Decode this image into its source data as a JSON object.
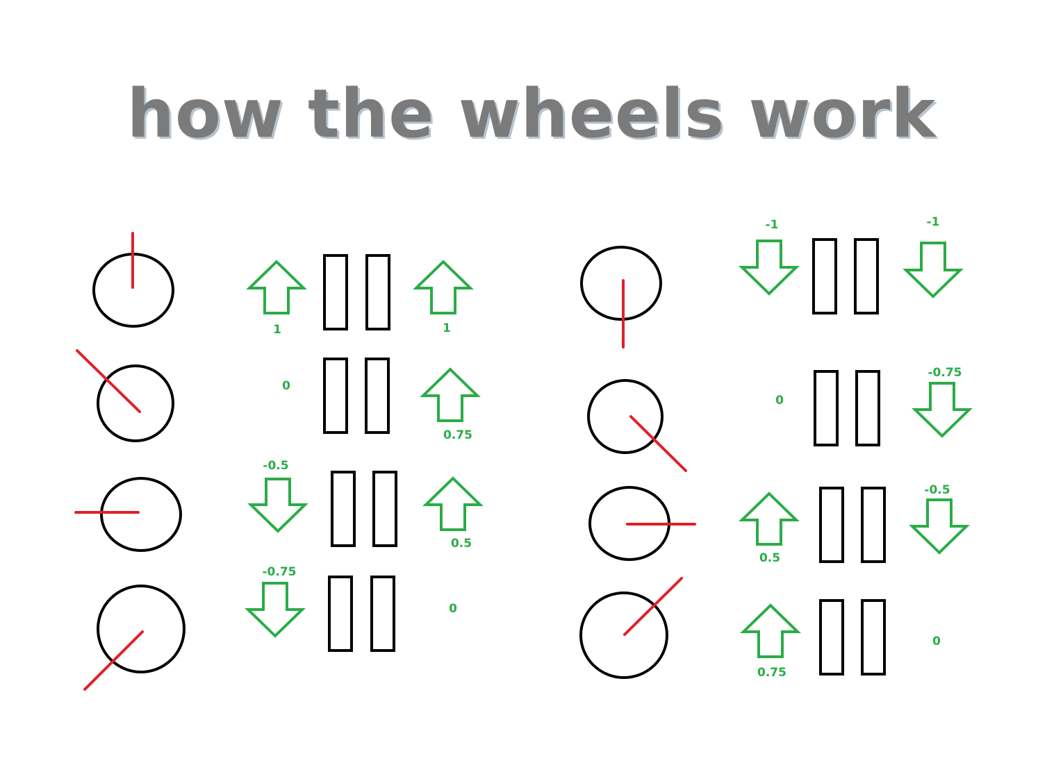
{
  "title": "how the wheels work",
  "colors": {
    "arrow": "#2bac48",
    "pointer": "#e0202a",
    "outline": "#000000",
    "title": "#7b7b7b"
  },
  "rows": [
    {
      "left_label": "1",
      "right_label": "1"
    },
    {
      "left_label": "0",
      "right_label": "0.75"
    },
    {
      "left_label": "-0.5",
      "right_label": "0.5"
    },
    {
      "left_label": "-0.75",
      "right_label": "0"
    },
    {
      "left_label": "-1",
      "right_label": "-1"
    },
    {
      "left_label": "0",
      "right_label": "-0.75"
    },
    {
      "left_label": "0.5",
      "right_label": "-0.5"
    },
    {
      "left_label": "0.75",
      "right_label": "0"
    }
  ]
}
